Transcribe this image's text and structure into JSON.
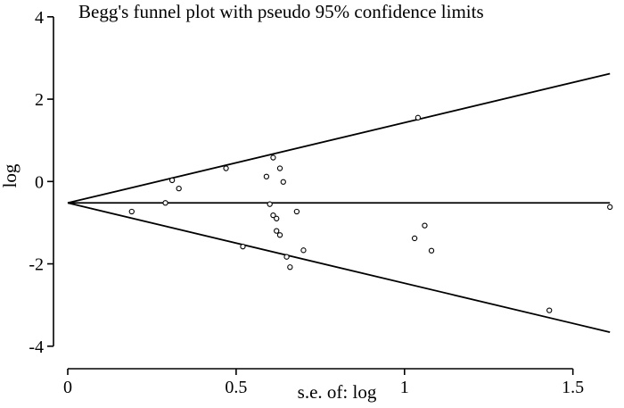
{
  "chart_data": {
    "type": "scatter",
    "title": "Begg's funnel plot with pseudo 95% confidence limits",
    "xlabel": "s.e. of: log",
    "ylabel": "log",
    "xlim": [
      0,
      1.62
    ],
    "ylim": [
      -4.2,
      4.3
    ],
    "x_ticks": [
      {
        "value": 0,
        "label": "0"
      },
      {
        "value": 0.5,
        "label": "0.5"
      },
      {
        "value": 1,
        "label": "1"
      },
      {
        "value": 1.5,
        "label": "1.5"
      }
    ],
    "y_ticks": [
      {
        "value": 4,
        "label": "4"
      },
      {
        "value": 2,
        "label": "2"
      },
      {
        "value": 0,
        "label": "0"
      },
      {
        "value": -2,
        "label": "-2"
      },
      {
        "value": -4,
        "label": "-4"
      }
    ],
    "pooled_estimate": -0.52,
    "confidence_limits": {
      "upper": [
        [
          0,
          -0.52
        ],
        [
          1.61,
          2.62
        ]
      ],
      "lower": [
        [
          0,
          -0.52
        ],
        [
          1.61,
          -3.66
        ]
      ]
    },
    "points": [
      {
        "x": 0.19,
        "y": -0.73
      },
      {
        "x": 0.29,
        "y": -0.52
      },
      {
        "x": 0.31,
        "y": 0.03
      },
      {
        "x": 0.33,
        "y": -0.17
      },
      {
        "x": 0.47,
        "y": 0.32
      },
      {
        "x": 0.52,
        "y": -1.58
      },
      {
        "x": 0.59,
        "y": 0.12
      },
      {
        "x": 0.6,
        "y": -0.55
      },
      {
        "x": 0.61,
        "y": -0.82
      },
      {
        "x": 0.61,
        "y": 0.58
      },
      {
        "x": 0.62,
        "y": -0.9
      },
      {
        "x": 0.62,
        "y": -1.2
      },
      {
        "x": 0.63,
        "y": 0.32
      },
      {
        "x": 0.63,
        "y": -1.3
      },
      {
        "x": 0.64,
        "y": -0.01
      },
      {
        "x": 0.65,
        "y": -1.83
      },
      {
        "x": 0.66,
        "y": -2.08
      },
      {
        "x": 0.68,
        "y": -0.73
      },
      {
        "x": 0.7,
        "y": -1.67
      },
      {
        "x": 1.03,
        "y": -1.38
      },
      {
        "x": 1.04,
        "y": 1.55
      },
      {
        "x": 1.06,
        "y": -1.07
      },
      {
        "x": 1.08,
        "y": -1.68
      },
      {
        "x": 1.43,
        "y": -3.13
      },
      {
        "x": 1.61,
        "y": -0.62
      }
    ]
  }
}
